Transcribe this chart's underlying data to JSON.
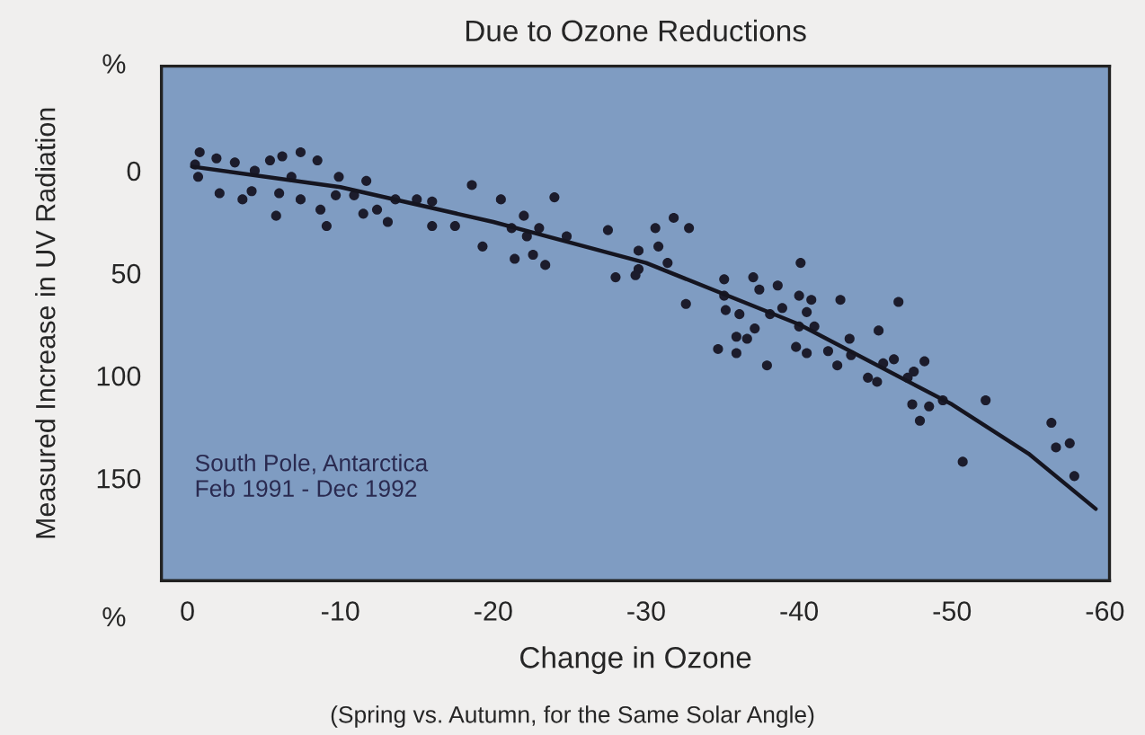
{
  "chart_data": {
    "type": "scatter",
    "title": "Due to Ozone Reductions",
    "xlabel": "Change in Ozone",
    "ylabel": "Measured Increase in UV Radiation",
    "annotations": [
      "%",
      "%",
      "South Pole, Antarctica\nFeb 1991 - Dec 1992",
      "(Spring vs. Autumn, for the Same Solar Angle)"
    ],
    "xlim": [
      1.7,
      -60.3
    ],
    "ylim": [
      200,
      -51
    ],
    "xticks": [
      0,
      -10,
      -20,
      -30,
      -40,
      -50,
      -60
    ],
    "yticks": [
      0,
      50,
      100,
      150
    ],
    "grid": false,
    "legend": false,
    "marker": "circle",
    "series": [
      {
        "color": "#1c1c2c",
        "x": [
          -0.8,
          -0.5,
          -0.7,
          -1.9,
          -2.1,
          -3.1,
          -3.6,
          -4.4,
          -4.2,
          -5.4,
          -6.2,
          -7.4,
          -8.5,
          -5.8,
          -6.0,
          -6.8,
          -7.4,
          -8.7,
          -9.1,
          -9.9,
          -9.7,
          -11.7,
          -10.9,
          -11.5,
          -12.4,
          -13.1,
          -13.6,
          -15.0,
          -16.0,
          -16.0,
          -17.5,
          -18.6,
          -19.3,
          -20.5,
          -21.2,
          -22.0,
          -22.2,
          -21.4,
          -23.0,
          -22.6,
          -23.4,
          -24.0,
          -24.8,
          -27.5,
          -28.0,
          -29.5,
          -29.5,
          -30.6,
          -30.8,
          -31.8,
          -32.8,
          -29.3,
          -31.4,
          -32.6,
          -35.1,
          -35.1,
          -35.2,
          -34.7,
          -35.9,
          -35.9,
          -36.1,
          -36.6,
          -37.1,
          -37.0,
          -37.4,
          -37.9,
          -38.1,
          -38.6,
          -38.9,
          -40.1,
          -40.0,
          -40.5,
          -40.0,
          -41.0,
          -39.8,
          -40.5,
          -40.8,
          -41.9,
          -42.7,
          -42.5,
          -43.3,
          -43.4,
          -44.5,
          -45.1,
          -45.2,
          -45.5,
          -46.2,
          -46.5,
          -47.1,
          -47.5,
          -48.2,
          -47.4,
          -47.9,
          -48.5,
          -49.4,
          -50.7,
          -52.2,
          -56.5,
          -56.8,
          -57.7,
          -58.0
        ],
        "values": [
          -9,
          -3,
          3,
          -6,
          11,
          -4,
          14,
          0,
          10,
          -5,
          -7,
          -9,
          -5,
          22,
          11,
          3,
          14,
          19,
          27,
          3,
          12,
          5,
          12,
          21,
          19,
          25,
          14,
          14,
          15,
          27,
          27,
          7,
          37,
          14,
          28,
          22,
          32,
          43,
          28,
          41,
          46,
          13,
          32,
          29,
          52,
          39,
          48,
          28,
          37,
          23,
          28,
          51,
          45,
          65,
          53,
          61,
          68,
          87,
          89,
          81,
          70,
          82,
          77,
          52,
          58,
          95,
          70,
          56,
          67,
          45,
          61,
          69,
          76,
          76,
          86,
          89,
          63,
          88,
          63,
          95,
          82,
          90,
          101,
          103,
          78,
          94,
          92,
          64,
          101,
          98,
          93,
          114,
          122,
          115,
          112,
          142,
          112,
          123,
          135,
          133,
          149
        ]
      },
      {
        "type": "line",
        "color": "#151520",
        "marker": "none",
        "line_style": "solid",
        "x": [
          -0.3,
          -10,
          -20,
          -30,
          -40,
          -50,
          -55,
          -59.4
        ],
        "values": [
          -2,
          8,
          25,
          45,
          75,
          114,
          138,
          165
        ]
      }
    ]
  }
}
